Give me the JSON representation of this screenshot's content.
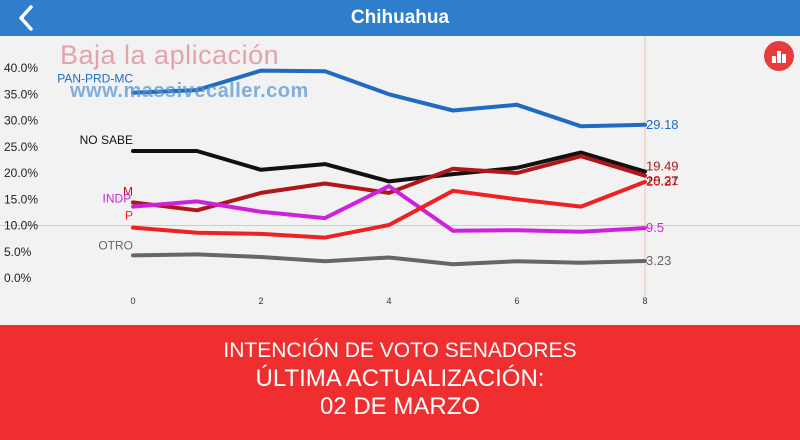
{
  "header": {
    "title": "Chihuahua"
  },
  "watermark": {
    "line1": "Baja la aplicación",
    "line2": "www.massivecaller.com"
  },
  "chart_button": {
    "icon": "bar-chart-icon"
  },
  "chart_data": {
    "type": "line",
    "title": "",
    "xlabel": "",
    "ylabel": "",
    "x": [
      0,
      1,
      2,
      3,
      4,
      5,
      6,
      7,
      8
    ],
    "x_ticks": [
      "0",
      "2",
      "4",
      "6",
      "8"
    ],
    "y_ticks": [
      "0.0%",
      "5.0%",
      "10.0%",
      "15.0%",
      "20.0%",
      "25.0%",
      "30.0%",
      "35.0%",
      "40.0%"
    ],
    "ylim": [
      0,
      40
    ],
    "xlim": [
      0,
      8
    ],
    "grid": false,
    "series": [
      {
        "name": "PAN-PRD-MC",
        "color": "#1e6bc1",
        "end_label": "29.18",
        "values": [
          35.3,
          35.8,
          39.5,
          39.4,
          35.0,
          31.9,
          33.0,
          28.9,
          29.18
        ]
      },
      {
        "name": "NO SABE",
        "color": "#111111",
        "end_label": "20.27",
        "values": [
          24.2,
          24.2,
          20.6,
          21.7,
          18.4,
          19.8,
          21.0,
          23.9,
          20.27
        ]
      },
      {
        "name": "M",
        "color": "#b0171b",
        "end_label": "19.49",
        "values": [
          14.4,
          12.9,
          16.2,
          18.0,
          16.2,
          20.8,
          20.0,
          23.2,
          19.49
        ]
      },
      {
        "name": "INDP.",
        "color": "#cc22dd",
        "end_label": "9.5",
        "values": [
          13.6,
          14.6,
          12.6,
          11.4,
          17.5,
          9.0,
          9.1,
          8.8,
          9.5
        ]
      },
      {
        "name": "P",
        "color": "#ee2222",
        "end_label": "18.31",
        "values": [
          9.6,
          8.6,
          8.4,
          7.7,
          10.1,
          16.6,
          15.0,
          13.6,
          18.31
        ]
      },
      {
        "name": "OTRO",
        "color": "#666666",
        "end_label": "3.23",
        "values": [
          4.3,
          4.5,
          4.0,
          3.2,
          3.9,
          2.6,
          3.2,
          2.9,
          3.23
        ]
      }
    ],
    "reference_lines": {
      "x": 8,
      "y": 10
    }
  },
  "footer": {
    "line1": "INTENCIÓN DE VOTO SENADORES",
    "line2": "ÚLTIMA ACTUALIZACIÓN:",
    "line3": "02 DE MARZO"
  }
}
